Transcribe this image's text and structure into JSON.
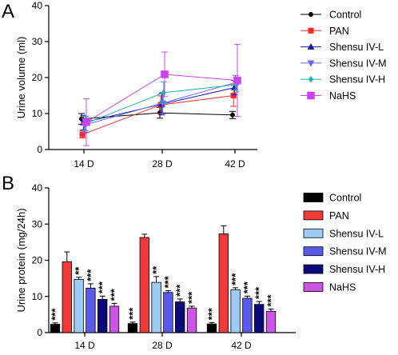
{
  "panels": [
    {
      "letter": "A"
    },
    {
      "letter": "B"
    }
  ],
  "chart_data": [
    {
      "type": "line",
      "panel": "A",
      "xlabel": "",
      "ylabel": "Urine volume (ml)",
      "categories": [
        "14 D",
        "28 D",
        "42 D"
      ],
      "ylim": [
        0,
        40
      ],
      "yticks": [
        0,
        10,
        20,
        30,
        40
      ],
      "grid": false,
      "legend_position": "right",
      "series": [
        {
          "name": "Control",
          "color": "#000000",
          "marker": "circle",
          "values": [
            8.5,
            10.2,
            9.6
          ],
          "errors": [
            1.5,
            1.5,
            1.0
          ]
        },
        {
          "name": "PAN",
          "color": "#ff2a2a",
          "marker": "square",
          "values": [
            4.2,
            12.4,
            15.0
          ],
          "errors": [
            1.0,
            2.5,
            3.0
          ]
        },
        {
          "name": "Shensu IV-L",
          "color": "#1a1aa8",
          "marker": "triangle-up",
          "values": [
            7.5,
            12.6,
            17.2
          ],
          "errors": [
            2.0,
            3.0,
            2.0
          ]
        },
        {
          "name": "Shensu IV-M",
          "color": "#6666ee",
          "marker": "triangle-down",
          "values": [
            6.8,
            12.9,
            18.6
          ],
          "errors": [
            2.0,
            3.0,
            2.0
          ]
        },
        {
          "name": "Shensu IV-H",
          "color": "#20b2aa",
          "marker": "diamond",
          "values": [
            7.2,
            15.8,
            18.0
          ],
          "errors": [
            2.0,
            3.0,
            2.0
          ]
        },
        {
          "name": "NaHS",
          "color": "#cc44ee",
          "marker": "square",
          "values": [
            7.6,
            20.9,
            19.2
          ],
          "errors": [
            6.5,
            6.2,
            10.0
          ]
        }
      ]
    },
    {
      "type": "bar",
      "panel": "B",
      "xlabel": "",
      "ylabel": "Urine protein (mg/24h)",
      "categories": [
        "14 D",
        "28 D",
        "42 D"
      ],
      "ylim": [
        0,
        40
      ],
      "yticks": [
        0,
        10,
        20,
        30,
        40
      ],
      "grid": false,
      "legend_position": "right",
      "series": [
        {
          "name": "Control",
          "color": "#000000",
          "values": [
            2.3,
            2.5,
            2.4
          ],
          "errors": [
            0.4,
            0.4,
            0.4
          ],
          "labels": [
            "***",
            "***",
            "***"
          ]
        },
        {
          "name": "PAN",
          "color": "#f33a3a",
          "values": [
            19.6,
            26.3,
            27.3
          ],
          "errors": [
            2.7,
            0.9,
            2.2
          ],
          "labels": [
            "",
            "",
            ""
          ]
        },
        {
          "name": "Shensu IV-L",
          "color": "#9ecbf5",
          "values": [
            14.7,
            13.9,
            11.8
          ],
          "errors": [
            0.6,
            1.6,
            0.6
          ],
          "labels": [
            "**",
            "**",
            "***"
          ]
        },
        {
          "name": "Shensu IV-M",
          "color": "#5a5aea",
          "values": [
            12.3,
            11.1,
            9.5
          ],
          "errors": [
            1.2,
            0.5,
            0.6
          ],
          "labels": [
            "***",
            "***",
            "***"
          ]
        },
        {
          "name": "Shensu IV-H",
          "color": "#0a0a78",
          "values": [
            9.2,
            8.5,
            7.8
          ],
          "errors": [
            0.9,
            0.8,
            0.8
          ],
          "labels": [
            "***",
            "***",
            "***"
          ]
        },
        {
          "name": "NaHS",
          "color": "#cc55e8",
          "values": [
            7.3,
            6.8,
            5.9
          ],
          "errors": [
            0.8,
            0.5,
            0.6
          ],
          "labels": [
            "***",
            "***",
            "***"
          ]
        }
      ]
    }
  ]
}
